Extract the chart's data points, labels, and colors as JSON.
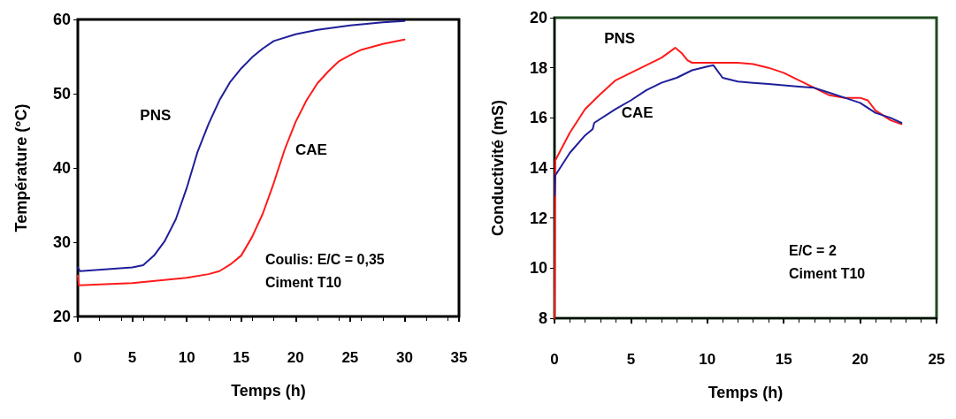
{
  "chart_data": [
    {
      "type": "line",
      "xlabel": "Temps (h)",
      "ylabel": "Température (°C)",
      "xlim": [
        0,
        35
      ],
      "xticks": [
        0,
        5,
        10,
        15,
        20,
        25,
        30,
        35
      ],
      "ylim": [
        20,
        60
      ],
      "yticks": [
        20,
        30,
        40,
        50,
        60
      ],
      "grid": false,
      "marker": "none",
      "line_style": "solid",
      "annotations": [
        "Coulis: E/C = 0,35",
        "Ciment T10"
      ],
      "series": [
        {
          "name": "PNS",
          "color": "#1f1f9a",
          "x": [
            0,
            0.2,
            5,
            6,
            7,
            8,
            9,
            10,
            11,
            12,
            13,
            14,
            15,
            16,
            17,
            18,
            20,
            22,
            25,
            28,
            30
          ],
          "values": [
            26.6,
            26.1,
            26.6,
            26.9,
            28.2,
            30.2,
            33.1,
            37.3,
            42.2,
            45.9,
            49.1,
            51.6,
            53.4,
            54.9,
            56.1,
            57.1,
            58,
            58.6,
            59.2,
            59.6,
            59.8
          ]
        },
        {
          "name": "CAE",
          "color": "#ff1a1a",
          "x": [
            0,
            0.1,
            5,
            10,
            12,
            13,
            14,
            15,
            16,
            17,
            18,
            19,
            20,
            21,
            22,
            23,
            24,
            25,
            26,
            28,
            30
          ],
          "values": [
            25.5,
            24.2,
            24.5,
            25.2,
            25.7,
            26.1,
            27,
            28.2,
            30.7,
            33.9,
            38,
            42.5,
            46.2,
            49.1,
            51.4,
            53,
            54.4,
            55.2,
            55.9,
            56.7,
            57.3
          ]
        }
      ]
    },
    {
      "type": "line",
      "xlabel": "Temps (h)",
      "ylabel": "Conductivité (mS)",
      "xlim": [
        0,
        25
      ],
      "xticks": [
        0,
        5,
        10,
        15,
        20,
        25
      ],
      "ylim": [
        8,
        20
      ],
      "yticks": [
        8,
        10,
        12,
        14,
        16,
        18,
        20
      ],
      "grid": false,
      "marker": "none",
      "line_style": "solid",
      "annotations": [
        "E/C = 2",
        "Ciment T10"
      ],
      "series": [
        {
          "name": "PNS",
          "color": "#ff1a1a",
          "x": [
            0,
            0.05,
            1,
            2,
            3,
            4,
            5,
            6,
            7,
            7.9,
            8.3,
            8.7,
            9,
            10,
            12,
            13,
            14,
            15,
            16,
            17,
            18,
            19,
            20,
            20.5,
            21,
            22,
            22.7
          ],
          "values": [
            8,
            14.3,
            15.4,
            16.35,
            16.95,
            17.5,
            17.8,
            18.1,
            18.4,
            18.8,
            18.6,
            18.3,
            18.2,
            18.2,
            18.2,
            18.15,
            18,
            17.8,
            17.5,
            17.2,
            16.9,
            16.8,
            16.8,
            16.7,
            16.3,
            15.9,
            15.75
          ]
        },
        {
          "name": "CAE",
          "color": "#1f1f9a",
          "x": [
            0,
            0.05,
            1,
            2,
            2.5,
            2.6,
            4,
            5,
            6,
            7,
            8,
            9,
            10,
            10.4,
            11,
            12,
            13,
            14,
            16,
            17,
            18,
            19,
            20,
            21,
            22,
            22.7
          ],
          "values": [
            12.9,
            13.7,
            14.6,
            15.3,
            15.55,
            15.8,
            16.35,
            16.7,
            17.1,
            17.4,
            17.6,
            17.9,
            18.05,
            18.1,
            17.6,
            17.45,
            17.4,
            17.35,
            17.25,
            17.2,
            17,
            16.8,
            16.6,
            16.2,
            16,
            15.8
          ]
        }
      ]
    }
  ]
}
